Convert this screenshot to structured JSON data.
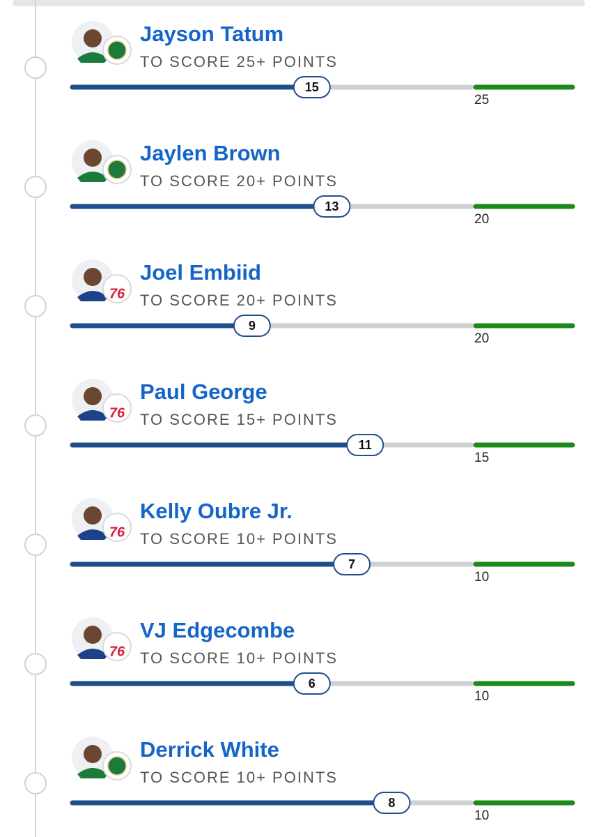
{
  "props": [
    {
      "name": "Jayson Tatum",
      "prop": "TO SCORE 25+ POINTS",
      "current": 15,
      "target": 25
    },
    {
      "name": "Jaylen Brown",
      "prop": "TO SCORE 20+ POINTS",
      "current": 13,
      "target": 20
    },
    {
      "name": "Joel Embiid",
      "prop": "TO SCORE 20+ POINTS",
      "current": 9,
      "target": 20,
      "logo": "76"
    },
    {
      "name": "Paul George",
      "prop": "TO SCORE 15+ POINTS",
      "current": 11,
      "target": 15,
      "logo": "76"
    },
    {
      "name": "Kelly Oubre Jr.",
      "prop": "TO SCORE 10+ POINTS",
      "current": 7,
      "target": 10,
      "logo": "76"
    },
    {
      "name": "VJ Edgecombe",
      "prop": "TO SCORE 10+ POINTS",
      "current": 6,
      "target": 10,
      "logo": "76"
    },
    {
      "name": "Derrick White",
      "prop": "TO SCORE 10+ POINTS",
      "current": 8,
      "target": 10
    }
  ]
}
